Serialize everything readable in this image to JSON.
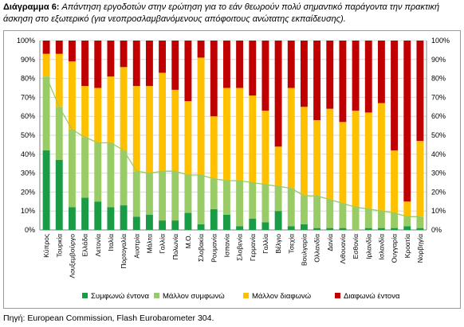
{
  "caption": {
    "label": "Διάγραμμα 6:",
    "text": "Απάντηση εργοδοτών στην ερώτηση για το εάν θεωρούν πολύ σημαντικό παράγοντα την πρακτική άσκηση στο εξωτερικό (για νεοπροσλαμβανόμενους απόφοιτους ανώτατης εκπαίδευσης)."
  },
  "source": "Πηγή: European Commission, Flash Eurobarometer 304.",
  "chart_data": {
    "type": "bar",
    "stacked": true,
    "categories": [
      "Κύπρος",
      "Τουρκία",
      "Λουξεμβούργο",
      "Ελλάδα",
      "Λετονία",
      "Ιταλία",
      "Πορτογαλία",
      "Αυστρία",
      "Μάλτα",
      "Γαλλία",
      "Πολωνία",
      "Μ.Ο.",
      "Σλοβακία",
      "Ρουμανία",
      "Ισπανία",
      "Σλοβενία",
      "Γερμανία",
      "Γαλλία",
      "Βέλγιο",
      "Τσεχία",
      "Βουλγαρία",
      "Ολλανδία",
      "Δανία",
      "Λιθουανία",
      "Εσθονία",
      "Ιρλανδία",
      "Ισλανδία",
      "Ουγγαρία",
      "Κροατία",
      "Νορβηγία"
    ],
    "series": [
      {
        "name": "Συμφωνώ έντονα",
        "color": "#1a9b45",
        "values": [
          42,
          37,
          12,
          17,
          15,
          12,
          13,
          7,
          8,
          5,
          5,
          9,
          3,
          11,
          8,
          2,
          6,
          4,
          10,
          2,
          3,
          1,
          1,
          1,
          0,
          1,
          1,
          1,
          2,
          1
        ]
      },
      {
        "name": "Μάλλον συμφωνώ",
        "color": "#99cc66",
        "values": [
          39,
          28,
          41,
          32,
          31,
          34,
          29,
          24,
          22,
          26,
          26,
          20,
          26,
          16,
          18,
          24,
          19,
          20,
          13,
          20,
          15,
          17,
          15,
          13,
          12,
          10,
          9,
          8,
          5,
          6
        ]
      },
      {
        "name": "Μάλλον διαφωνώ",
        "color": "#ffc000",
        "values": [
          12,
          28,
          36,
          27,
          29,
          35,
          44,
          45,
          46,
          52,
          43,
          39,
          62,
          33,
          49,
          49,
          46,
          39,
          21,
          53,
          47,
          40,
          48,
          43,
          51,
          51,
          57,
          33,
          8,
          40
        ]
      },
      {
        "name": "Διαφωνώ έντονα",
        "color": "#c00000",
        "values": [
          7,
          7,
          11,
          24,
          25,
          19,
          14,
          24,
          24,
          17,
          26,
          32,
          9,
          40,
          25,
          25,
          29,
          37,
          56,
          25,
          35,
          42,
          36,
          43,
          37,
          38,
          33,
          58,
          85,
          53
        ]
      }
    ],
    "line_series": {
      "name": "",
      "color": "#99cc66",
      "values": [
        81,
        65,
        53,
        49,
        46,
        46,
        42,
        31,
        30,
        31,
        31,
        29,
        29,
        27,
        26,
        26,
        25,
        24,
        23,
        22,
        18,
        18,
        16,
        14,
        12,
        11,
        10,
        9,
        7,
        7
      ]
    },
    "ylim": [
      0,
      100
    ],
    "yticks": [
      "0%",
      "10%",
      "20%",
      "30%",
      "40%",
      "50%",
      "60%",
      "70%",
      "80%",
      "90%",
      "100%"
    ],
    "legend_position": "bottom",
    "grid": true
  }
}
